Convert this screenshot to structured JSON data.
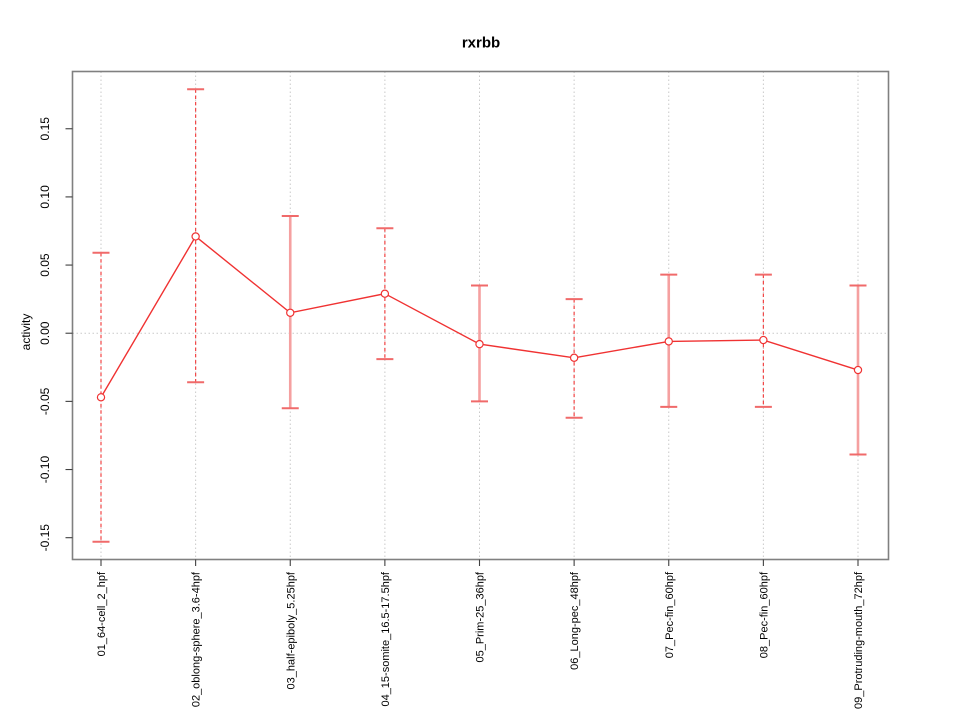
{
  "title": "rxrbb",
  "chart_data": {
    "type": "line",
    "title": "rxrbb",
    "xlabel": "",
    "ylabel": "activity",
    "ylim": [
      -0.166,
      0.192
    ],
    "yticks": [
      0.15,
      0.1,
      0.05,
      0.0,
      -0.05,
      -0.1,
      -0.15
    ],
    "grid": "dotted vertical line at each category; dotted horizontal line at y=0",
    "legend_position": "none",
    "categories": [
      "01_64-cell_2_hpf",
      "02_oblong-sphere_3.6-4hpf",
      "03_half-epiboly_5.25hpf",
      "04_15-somite_16.5-17.5hpf",
      "05_Prim-25_36hpf",
      "06_Long-pec_48hpf",
      "07_Pec-fin_60hpf",
      "08_Pec-fin_60hpf",
      "09_Protruding-mouth_72hpf"
    ],
    "series": [
      {
        "name": "activity",
        "marker": "open-circle",
        "values": [
          -0.047,
          0.071,
          0.015,
          0.029,
          -0.008,
          -0.018,
          -0.006,
          -0.005,
          -0.027
        ],
        "error_upper": [
          0.059,
          0.179,
          0.086,
          0.077,
          0.035,
          0.025,
          0.043,
          0.043,
          0.035
        ],
        "error_lower": [
          -0.153,
          -0.036,
          -0.055,
          -0.019,
          -0.05,
          -0.062,
          -0.054,
          -0.054,
          -0.089
        ],
        "error_bar_styles": [
          "dashed",
          "dashed",
          "solid",
          "dashed",
          "solid",
          "dashed",
          "solid",
          "dashed",
          "solid"
        ]
      }
    ],
    "colors": {
      "series_line": "#f03232",
      "marker_stroke": "#f03232",
      "error_bar_dashed": "#f24545",
      "error_bar_solid": "#f5a0a0",
      "error_bar_cap": "#f06a6a",
      "gridline": "#c9c9c9",
      "plot_border": "#808080",
      "tick": "#404040",
      "text": "#000000",
      "background": "#ffffff"
    }
  }
}
